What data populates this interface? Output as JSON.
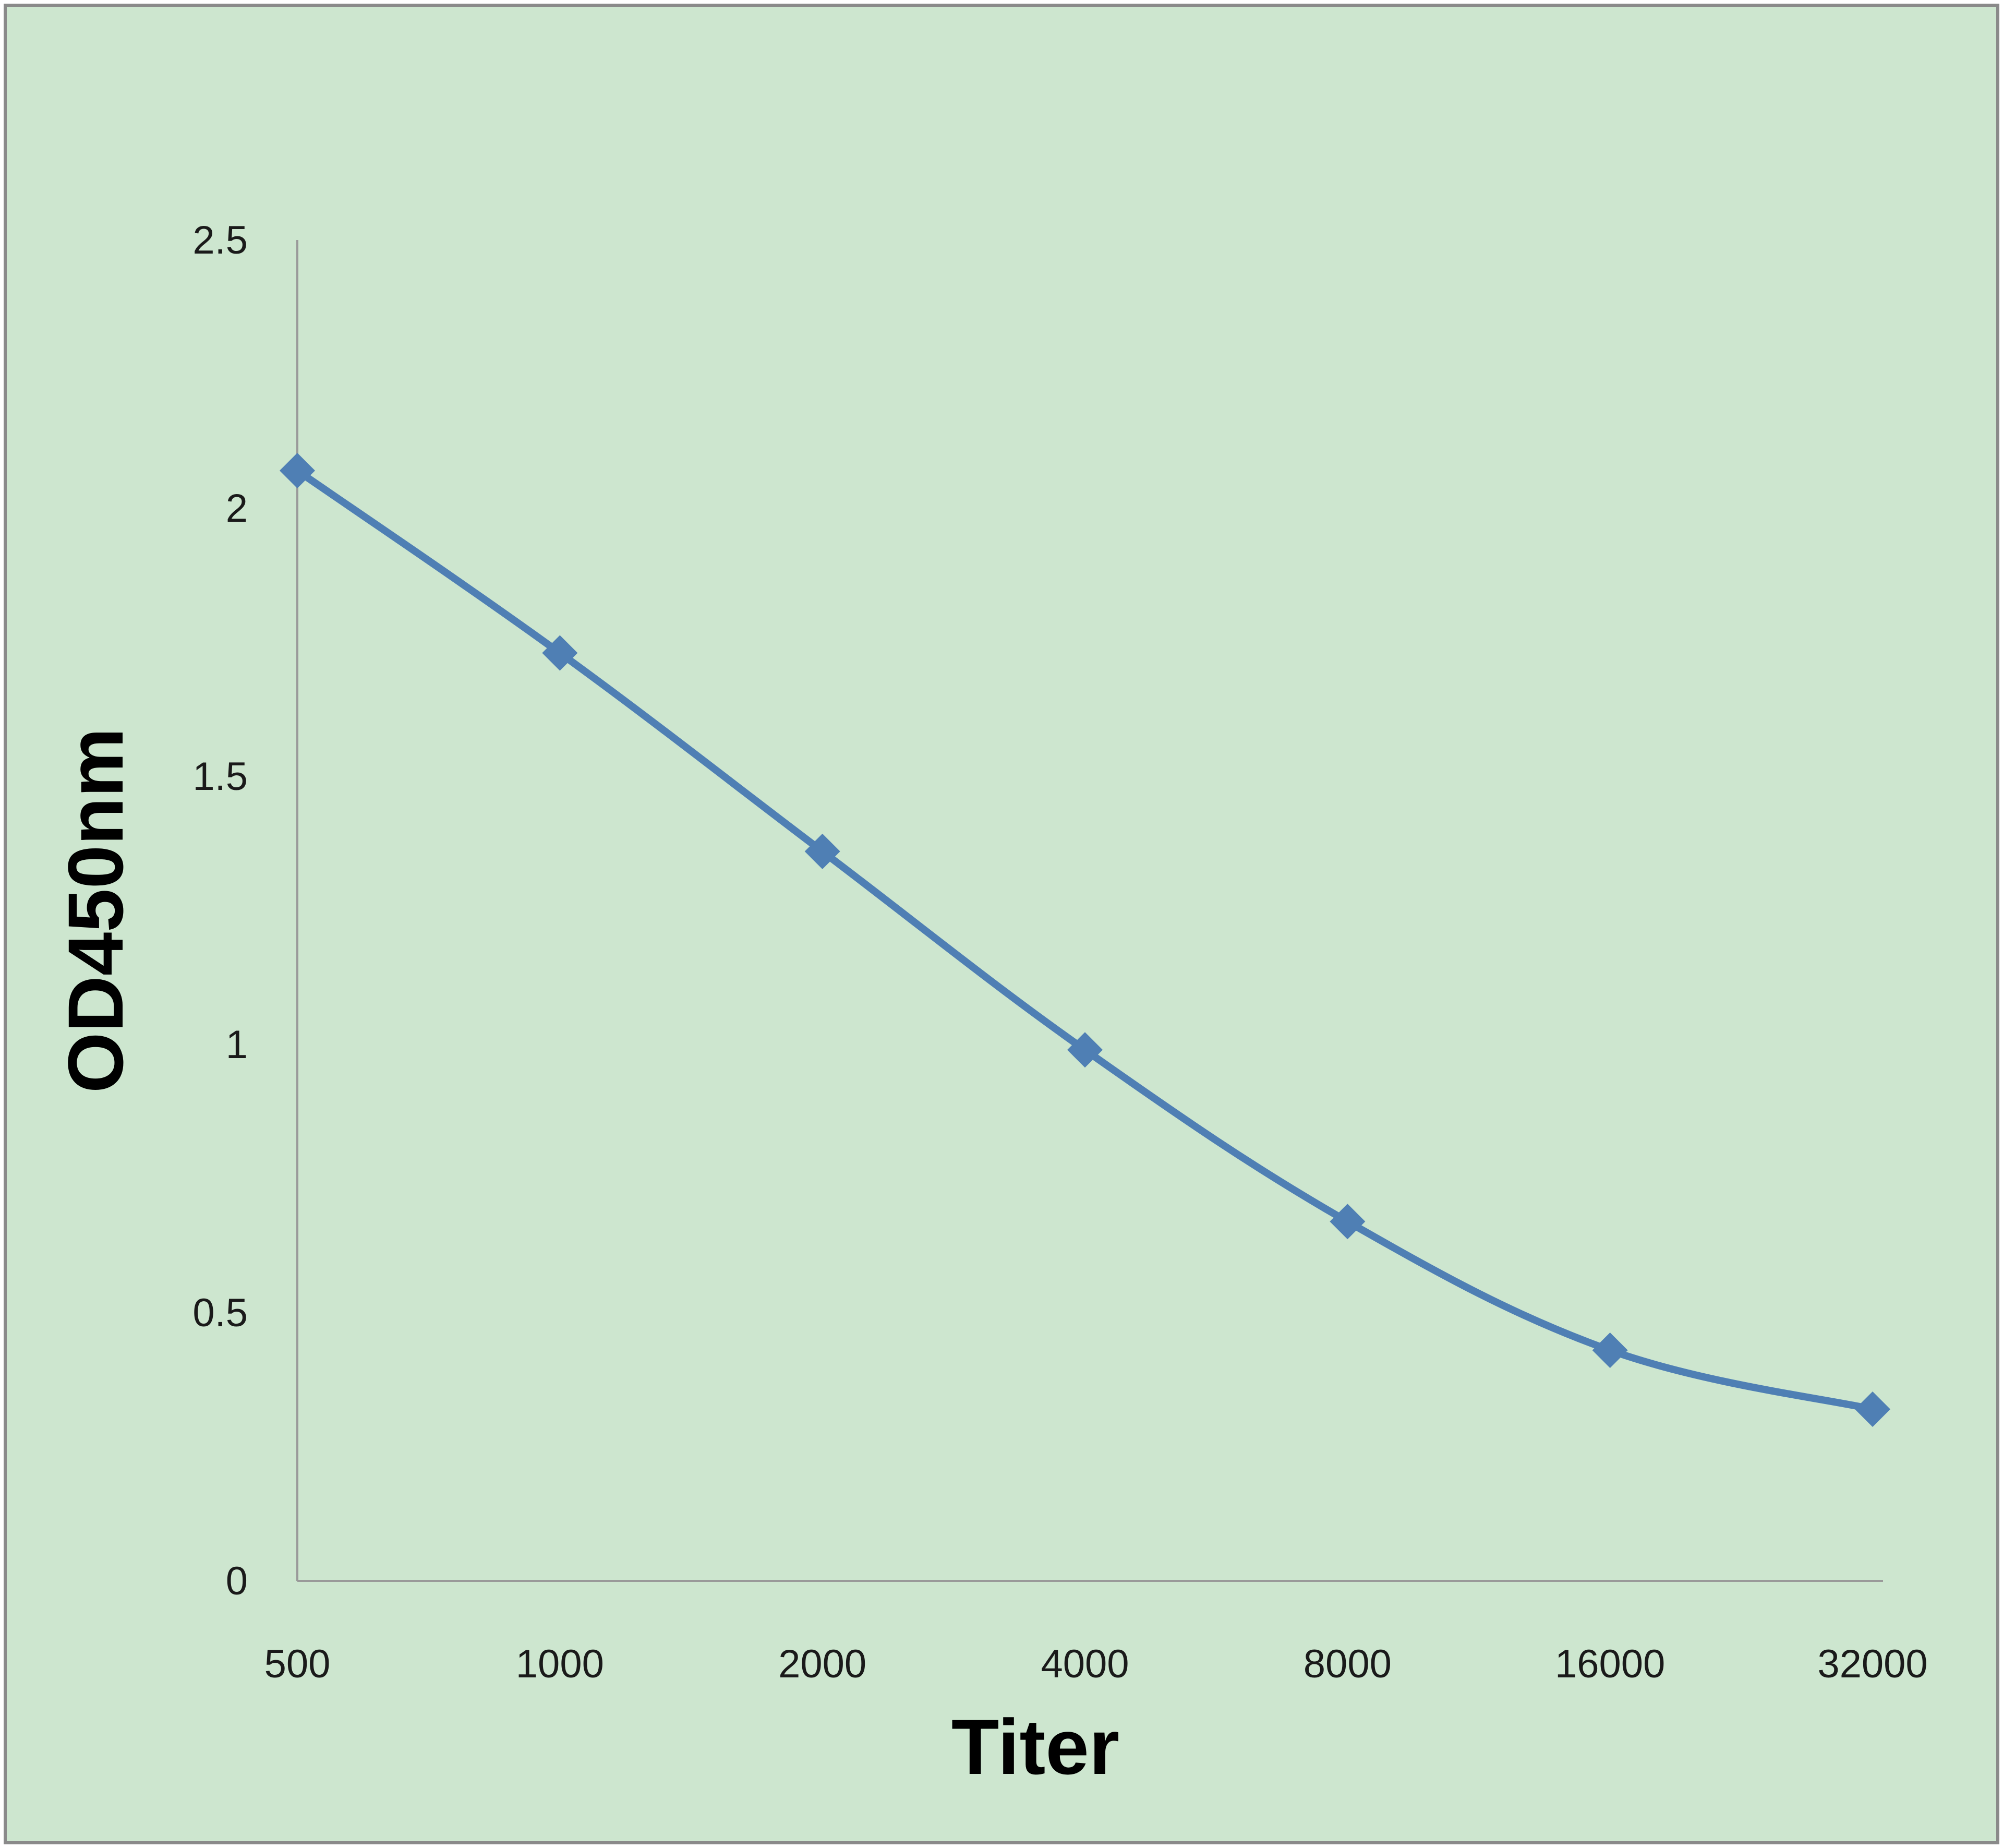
{
  "colors": {
    "background": "#cde6cf",
    "frame": "#8a8a8a",
    "axis": "#9a9a9a",
    "series": "#4f7fb4"
  },
  "chart_data": {
    "type": "line",
    "title": "",
    "xlabel": "Titer",
    "ylabel": "OD450nm",
    "categories": [
      "500",
      "1000",
      "2000",
      "4000",
      "8000",
      "16000",
      "32000"
    ],
    "series": [
      {
        "values": [
          2.07,
          1.73,
          1.36,
          0.99,
          0.67,
          0.43,
          0.32
        ]
      }
    ],
    "ylim": [
      0,
      2.5
    ],
    "yticks": [
      "0",
      "0.5",
      "1",
      "1.5",
      "2",
      "2.5"
    ],
    "marker": "diamond",
    "smooth": true,
    "grid": false,
    "legend": "none"
  }
}
